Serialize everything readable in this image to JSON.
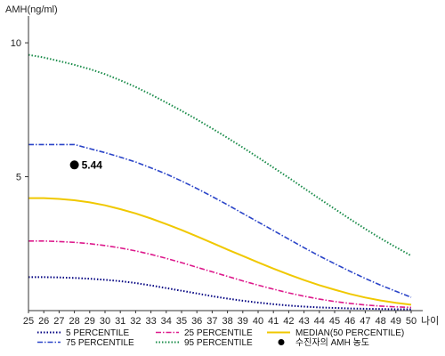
{
  "chart_data": {
    "type": "line",
    "ylabel": "AMH(ng/ml)",
    "xlabel": "나이",
    "xlim": [
      25,
      50
    ],
    "ylim": [
      0,
      11
    ],
    "yticks": [
      5,
      10
    ],
    "x": [
      25,
      26,
      27,
      28,
      29,
      30,
      31,
      32,
      33,
      34,
      35,
      36,
      37,
      38,
      39,
      40,
      41,
      42,
      43,
      44,
      45,
      46,
      47,
      48,
      49,
      50
    ],
    "series": [
      {
        "name": "5 PERCENTILE",
        "color": "#000080",
        "dash": "dotted",
        "values": [
          1.25,
          1.25,
          1.24,
          1.22,
          1.19,
          1.15,
          1.1,
          1.03,
          0.94,
          0.84,
          0.74,
          0.64,
          0.54,
          0.45,
          0.37,
          0.3,
          0.24,
          0.19,
          0.15,
          0.12,
          0.1,
          0.08,
          0.07,
          0.06,
          0.05,
          0.05
        ]
      },
      {
        "name": "25 PERCENTILE",
        "color": "#dd1a8c",
        "dash": "dashdot",
        "values": [
          2.6,
          2.6,
          2.58,
          2.55,
          2.5,
          2.43,
          2.34,
          2.23,
          2.1,
          1.95,
          1.79,
          1.62,
          1.45,
          1.28,
          1.11,
          0.95,
          0.8,
          0.66,
          0.54,
          0.43,
          0.34,
          0.27,
          0.21,
          0.17,
          0.14,
          0.12
        ]
      },
      {
        "name": "MEDIAN(50 PERCENTILE)",
        "color": "#f0c800",
        "dash": "solid",
        "values": [
          4.2,
          4.2,
          4.17,
          4.12,
          4.04,
          3.93,
          3.79,
          3.63,
          3.44,
          3.23,
          3.01,
          2.77,
          2.53,
          2.28,
          2.04,
          1.8,
          1.57,
          1.35,
          1.14,
          0.95,
          0.78,
          0.62,
          0.49,
          0.38,
          0.29,
          0.22
        ]
      },
      {
        "name": "75 PERCENTILE",
        "color": "#2a44c8",
        "dash": "dashdot",
        "values": [
          6.2,
          6.2,
          6.2,
          6.2,
          6.05,
          5.9,
          5.73,
          5.55,
          5.33,
          5.1,
          4.84,
          4.56,
          4.26,
          3.95,
          3.63,
          3.31,
          2.99,
          2.67,
          2.35,
          2.04,
          1.75,
          1.47,
          1.2,
          0.95,
          0.72,
          0.5
        ]
      },
      {
        "name": "95 PERCENTILE",
        "color": "#1a8c4a",
        "dash": "dotted",
        "values": [
          9.55,
          9.45,
          9.32,
          9.18,
          9.02,
          8.83,
          8.6,
          8.35,
          8.07,
          7.77,
          7.46,
          7.14,
          6.8,
          6.45,
          6.09,
          5.72,
          5.34,
          4.96,
          4.57,
          4.18,
          3.8,
          3.42,
          3.05,
          2.7,
          2.37,
          2.05
        ]
      }
    ],
    "annotation": {
      "name": "수진자의 AMH 농도",
      "x": 28,
      "y": 5.44,
      "label": "5.44",
      "color": "#000000"
    },
    "legend_position": "bottom"
  }
}
